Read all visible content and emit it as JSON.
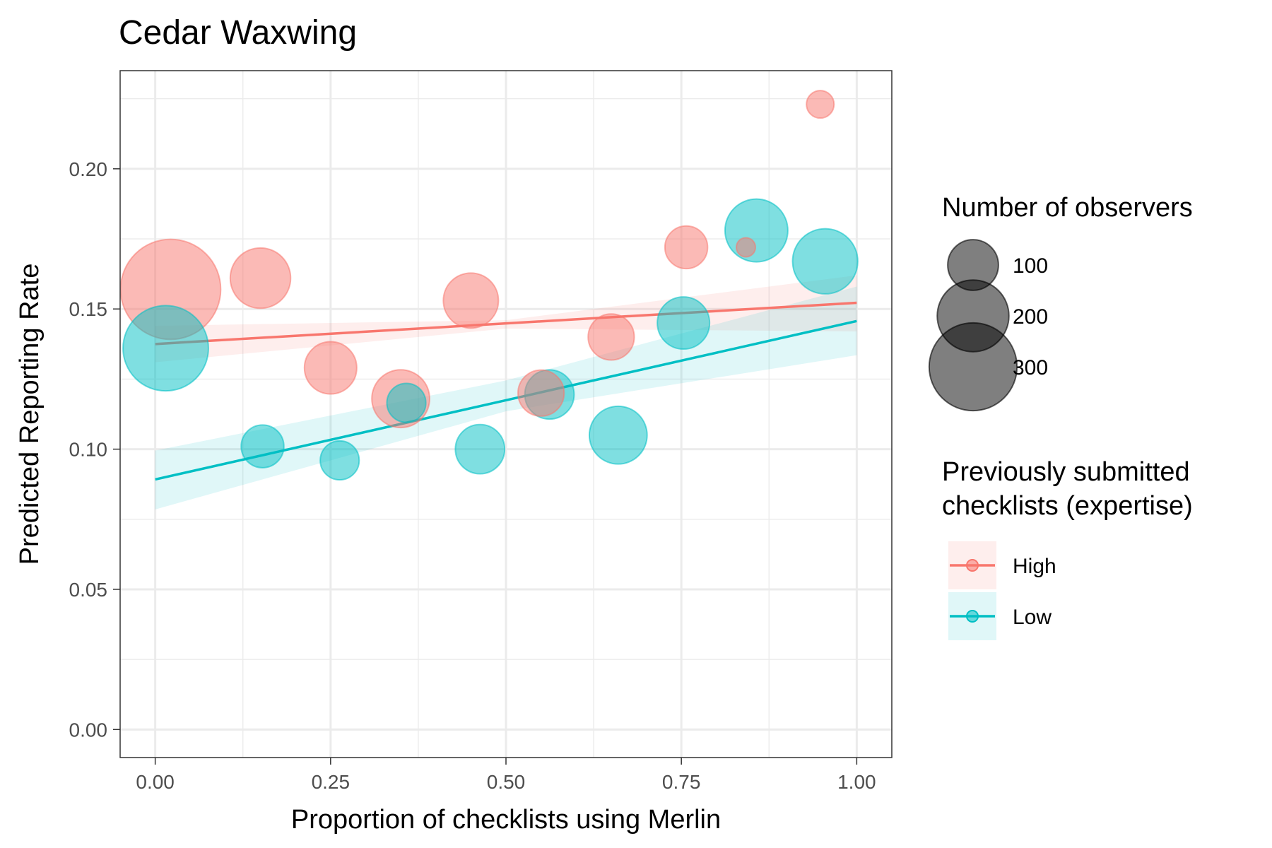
{
  "chart_data": {
    "type": "scatter",
    "title": "Cedar Waxwing",
    "xlabel": "Proportion of checklists using Merlin",
    "ylabel": "Predicted Reporting Rate",
    "xlim": [
      -0.05,
      1.05
    ],
    "ylim": [
      -0.01,
      0.235
    ],
    "x_ticks": [
      0.0,
      0.25,
      0.5,
      0.75,
      1.0
    ],
    "x_tick_labels": [
      "0.00",
      "0.25",
      "0.50",
      "0.75",
      "1.00"
    ],
    "y_ticks": [
      0.0,
      0.05,
      0.1,
      0.15,
      0.2
    ],
    "y_tick_labels": [
      "0.00",
      "0.05",
      "0.10",
      "0.15",
      "0.20"
    ],
    "grid": true,
    "legend_placement": "right",
    "size_legend": {
      "title": "Number of observers",
      "entries": [
        {
          "label": "100",
          "value": 100
        },
        {
          "label": "200",
          "value": 200
        },
        {
          "label": "300",
          "value": 300
        }
      ]
    },
    "color_legend": {
      "title_lines": [
        "Previously submitted",
        "checklists (expertise)"
      ]
    },
    "series": [
      {
        "name": "High",
        "color": "#f8766d",
        "points": [
          {
            "x": 0.022,
            "y": 0.157,
            "observers": 330
          },
          {
            "x": 0.15,
            "y": 0.161,
            "observers": 120
          },
          {
            "x": 0.25,
            "y": 0.129,
            "observers": 90
          },
          {
            "x": 0.35,
            "y": 0.118,
            "observers": 110
          },
          {
            "x": 0.45,
            "y": 0.153,
            "observers": 100
          },
          {
            "x": 0.55,
            "y": 0.12,
            "observers": 70
          },
          {
            "x": 0.65,
            "y": 0.14,
            "observers": 70
          },
          {
            "x": 0.757,
            "y": 0.172,
            "observers": 60
          },
          {
            "x": 0.842,
            "y": 0.172,
            "observers": 12
          },
          {
            "x": 0.948,
            "y": 0.223,
            "observers": 25
          }
        ],
        "fit": {
          "x": [
            0.0,
            1.0
          ],
          "y": [
            0.1375,
            0.1522
          ]
        },
        "ci": {
          "x": [
            0.0,
            0.5,
            1.0
          ],
          "lower": [
            0.131,
            0.143,
            0.142
          ],
          "upper": [
            0.144,
            0.146,
            0.162
          ]
        }
      },
      {
        "name": "Low",
        "color": "#00bfc4",
        "points": [
          {
            "x": 0.015,
            "y": 0.136,
            "observers": 240
          },
          {
            "x": 0.153,
            "y": 0.101,
            "observers": 60
          },
          {
            "x": 0.263,
            "y": 0.096,
            "observers": 50
          },
          {
            "x": 0.358,
            "y": 0.1165,
            "observers": 50
          },
          {
            "x": 0.463,
            "y": 0.1,
            "observers": 80
          },
          {
            "x": 0.562,
            "y": 0.1195,
            "observers": 80
          },
          {
            "x": 0.66,
            "y": 0.105,
            "observers": 110
          },
          {
            "x": 0.753,
            "y": 0.145,
            "observers": 90
          },
          {
            "x": 0.857,
            "y": 0.178,
            "observers": 130
          },
          {
            "x": 0.955,
            "y": 0.167,
            "observers": 140
          }
        ],
        "fit": {
          "x": [
            0.0,
            1.0
          ],
          "y": [
            0.0892,
            0.1457
          ]
        },
        "ci": {
          "x": [
            0.0,
            0.5,
            1.0
          ],
          "lower": [
            0.0785,
            0.1135,
            0.1335
          ],
          "upper": [
            0.0995,
            0.1245,
            0.158
          ]
        }
      }
    ]
  }
}
